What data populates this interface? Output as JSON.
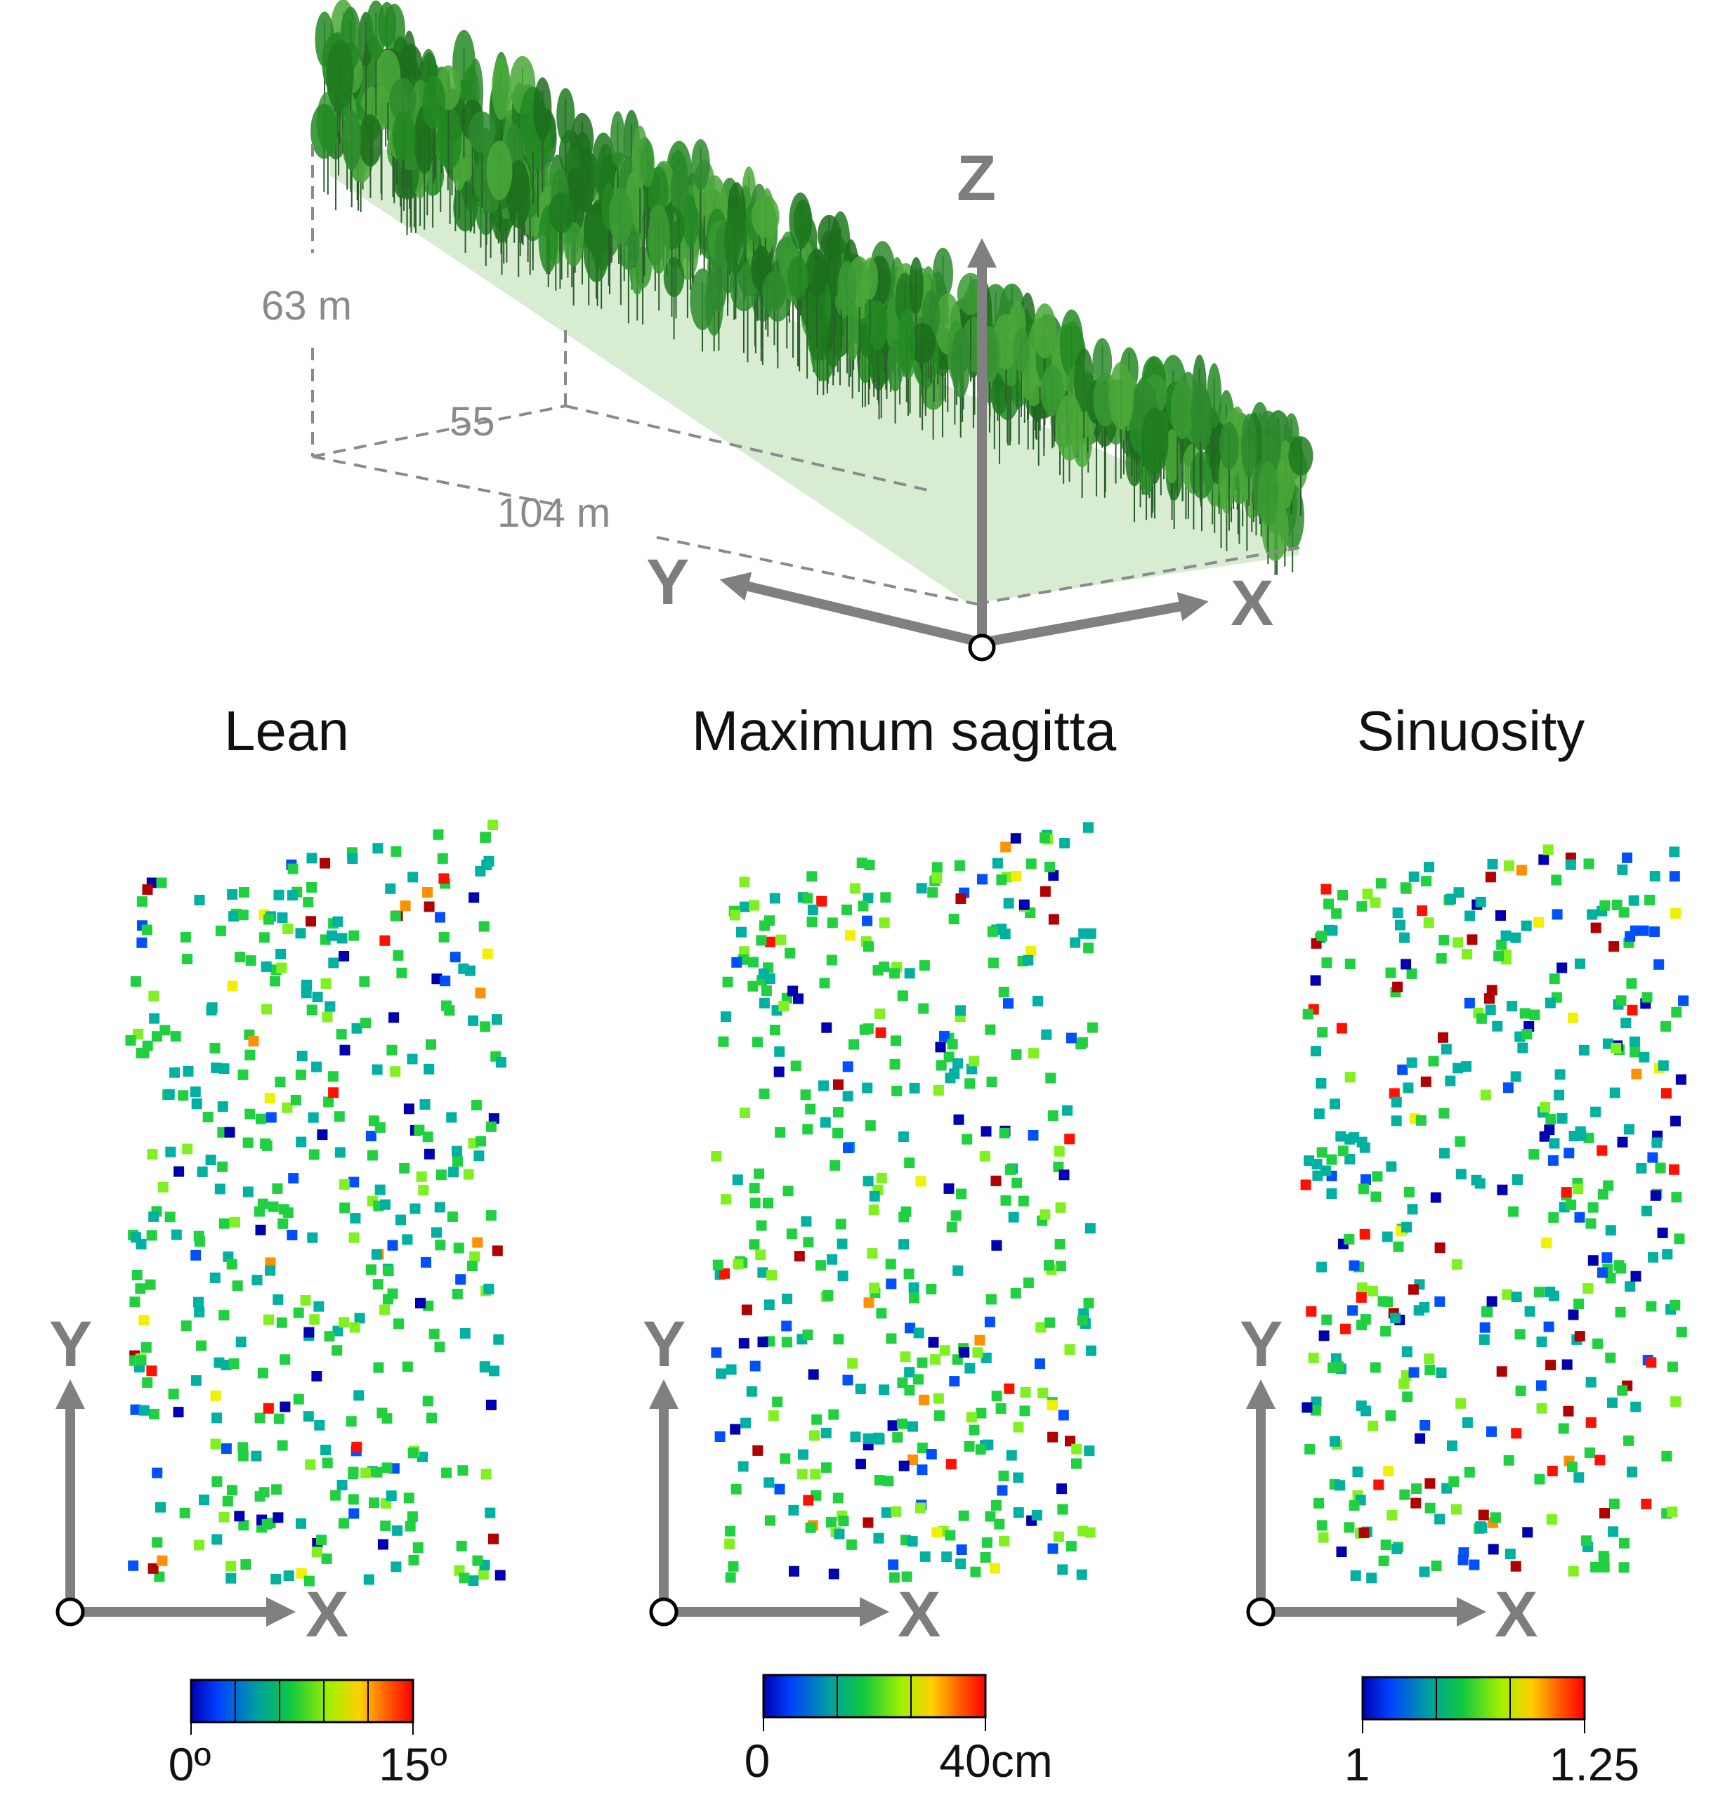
{
  "scene": {
    "dimensions": {
      "height": "63 m",
      "width": "55",
      "length": "104 m"
    },
    "axes": {
      "x": "X",
      "y": "Y",
      "z": "Z"
    },
    "canopy_color": "#2e8b2e"
  },
  "panels": [
    {
      "title": "Lean",
      "axis_x": "X",
      "axis_y": "Y",
      "colorbar_min": "0º",
      "colorbar_max": "15º"
    },
    {
      "title": "Maximum sagitta",
      "axis_x": "X",
      "axis_y": "Y",
      "colorbar_min": "0",
      "colorbar_max": "40cm"
    },
    {
      "title": "Sinuosity",
      "axis_x": "X",
      "axis_y": "Y",
      "colorbar_min": "1",
      "colorbar_max": "1.25"
    }
  ],
  "colormap": [
    "#0000b0",
    "#0050ff",
    "#00b0a0",
    "#20d040",
    "#80f020",
    "#f0f000",
    "#ff9000",
    "#ff1000",
    "#b00000"
  ],
  "marker_color_weights": {
    "Lean": [
      0.12,
      0.3,
      0.42,
      0.1,
      0.04,
      0.02
    ],
    "Maximum sagitta": [
      0.12,
      0.24,
      0.4,
      0.14,
      0.04,
      0.06
    ],
    "Sinuosity": [
      0.16,
      0.3,
      0.32,
      0.08,
      0.04,
      0.1
    ]
  }
}
